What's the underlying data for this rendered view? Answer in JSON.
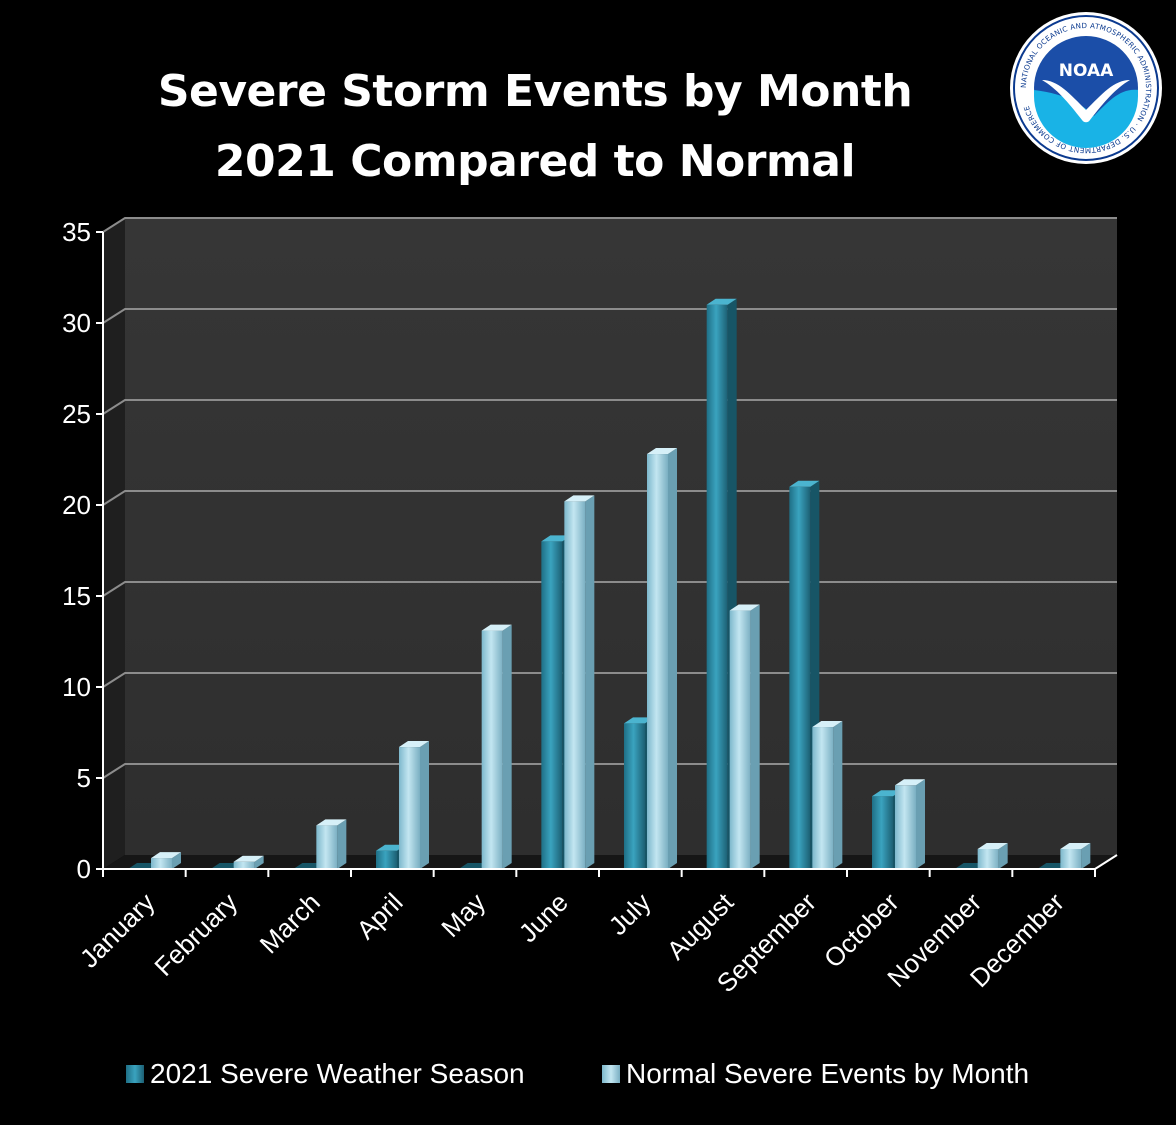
{
  "chart_data": {
    "type": "bar",
    "title": "Severe Storm Events by Month",
    "subtitle": "2021 Compared to Normal",
    "categories": [
      "January",
      "February",
      "March",
      "April",
      "May",
      "June",
      "July",
      "August",
      "September",
      "October",
      "November",
      "December"
    ],
    "series": [
      {
        "name": "2021 Severe Weather Season",
        "values": [
          0,
          0,
          0,
          1,
          0,
          18,
          8,
          31,
          21,
          4,
          0,
          0
        ],
        "color": "#2f8fa8"
      },
      {
        "name": "Normal Severe Events by Month",
        "values": [
          0.6,
          0.4,
          2.4,
          6.7,
          13.1,
          20.2,
          22.8,
          14.2,
          7.8,
          4.6,
          1.1,
          1.1
        ],
        "color": "#9fd0e0"
      }
    ],
    "ylim": [
      0,
      35
    ],
    "yticks": [
      "0",
      "5",
      "10",
      "15",
      "20",
      "25",
      "30",
      "35"
    ],
    "grid": true,
    "legend_position": "bottom"
  },
  "logo": {
    "text": "NOAA",
    "ring_text": "NATIONAL OCEANIC AND ATMOSPHERIC ADMINISTRATION · U.S. DEPARTMENT OF COMMERCE"
  },
  "colors": {
    "background": "#000000",
    "plot_wall": "#333333",
    "gridline": "#8c8c8c",
    "text": "#ffffff"
  }
}
